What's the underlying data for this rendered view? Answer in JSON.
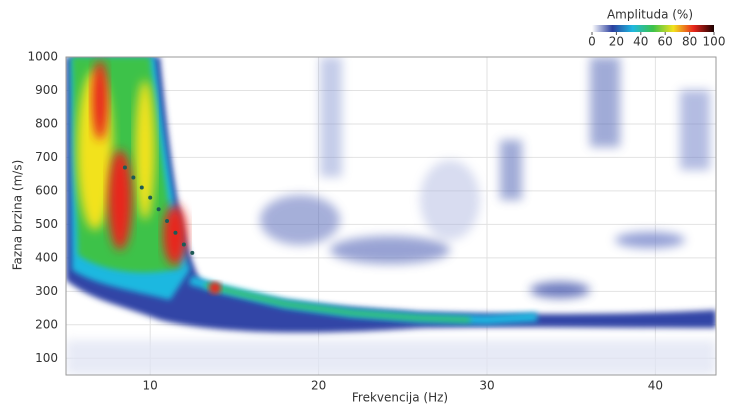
{
  "chart_data": {
    "type": "scatter",
    "xlabel": "Frekvencija (Hz)",
    "ylabel": "Fazna brzina (m/s)",
    "x": [
      8.5,
      9,
      9.5,
      10,
      10.5,
      11,
      11.5,
      12,
      12.5
    ],
    "values": [
      670,
      640,
      610,
      580,
      545,
      510,
      475,
      440,
      415
    ],
    "color": "#1d5a55",
    "xlim": [
      5,
      43.6
    ],
    "xticks": [
      10,
      20,
      30,
      40
    ],
    "ylim": [
      50,
      1000
    ],
    "yticks": [
      100,
      200,
      300,
      400,
      500,
      600,
      700,
      800,
      900,
      1000
    ],
    "grid": true,
    "colorbar": {
      "title": "Amplituda (%)",
      "clim": [
        0,
        100
      ],
      "ticks": [
        0,
        20,
        40,
        60,
        80,
        100
      ],
      "colors": [
        "#ffffff",
        "#2b3f9e",
        "#1fb8e0",
        "#3cc24a",
        "#f2e21e",
        "#e8261c",
        "#1a0000"
      ]
    }
  }
}
